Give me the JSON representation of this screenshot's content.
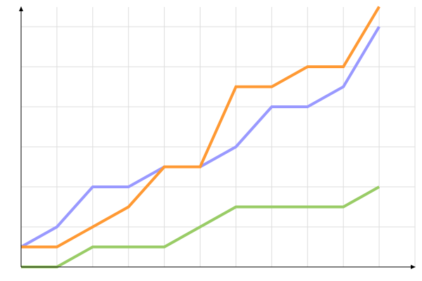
{
  "chart_data": {
    "type": "line",
    "title": "",
    "xlabel": "",
    "ylabel": "",
    "x": [
      0,
      1,
      2,
      3,
      4,
      5,
      6,
      7,
      8,
      9,
      10
    ],
    "xlim": [
      0,
      11
    ],
    "ylim": [
      0,
      13
    ],
    "grid": true,
    "grid_x_step": 1,
    "grid_y_step": 2,
    "legend": "none",
    "series": [
      {
        "color": "#9999ff",
        "values": [
          1,
          2,
          4,
          4,
          5,
          5,
          6,
          8,
          8,
          9,
          12
        ]
      },
      {
        "color": "#ff9933",
        "values": [
          1,
          1,
          2,
          3,
          5,
          5,
          9,
          9,
          10,
          10,
          13
        ]
      },
      {
        "color": "#99cc66",
        "values": [
          0,
          0,
          1,
          1,
          1,
          2,
          3,
          3,
          3,
          3,
          4
        ]
      }
    ]
  }
}
